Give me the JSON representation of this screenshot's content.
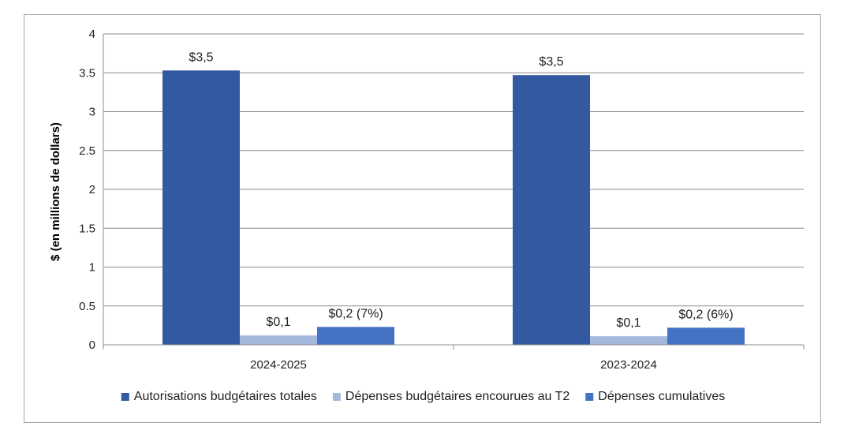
{
  "chart_data": {
    "type": "bar",
    "title": "",
    "xlabel": "",
    "ylabel": "$ (en millions de dollars)",
    "ylim": [
      0,
      4
    ],
    "yticks": [
      "0",
      "0.5",
      "1",
      "1.5",
      "2",
      "2.5",
      "3",
      "3.5",
      "4"
    ],
    "ytick_values": [
      0,
      0.5,
      1,
      1.5,
      2,
      2.5,
      3,
      3.5,
      4
    ],
    "categories": [
      "2024-2025",
      "2023-2024"
    ],
    "series": [
      {
        "name": "Autorisations budgétaires totales",
        "color": "#335aa0",
        "values": [
          3.53,
          3.47
        ],
        "labels": [
          "$3,5",
          "$3,5"
        ]
      },
      {
        "name": "Dépenses budgétaires encourues au T2",
        "color": "#a5b8dc",
        "values": [
          0.12,
          0.11
        ],
        "labels": [
          "$0,1",
          "$0,1"
        ]
      },
      {
        "name": "Dépenses cumulatives",
        "color": "#4472c4",
        "values": [
          0.23,
          0.22
        ],
        "labels": [
          "$0,2 (7%)",
          "$0,2 (6%)"
        ]
      }
    ],
    "legend": "bottom",
    "grid": true
  }
}
